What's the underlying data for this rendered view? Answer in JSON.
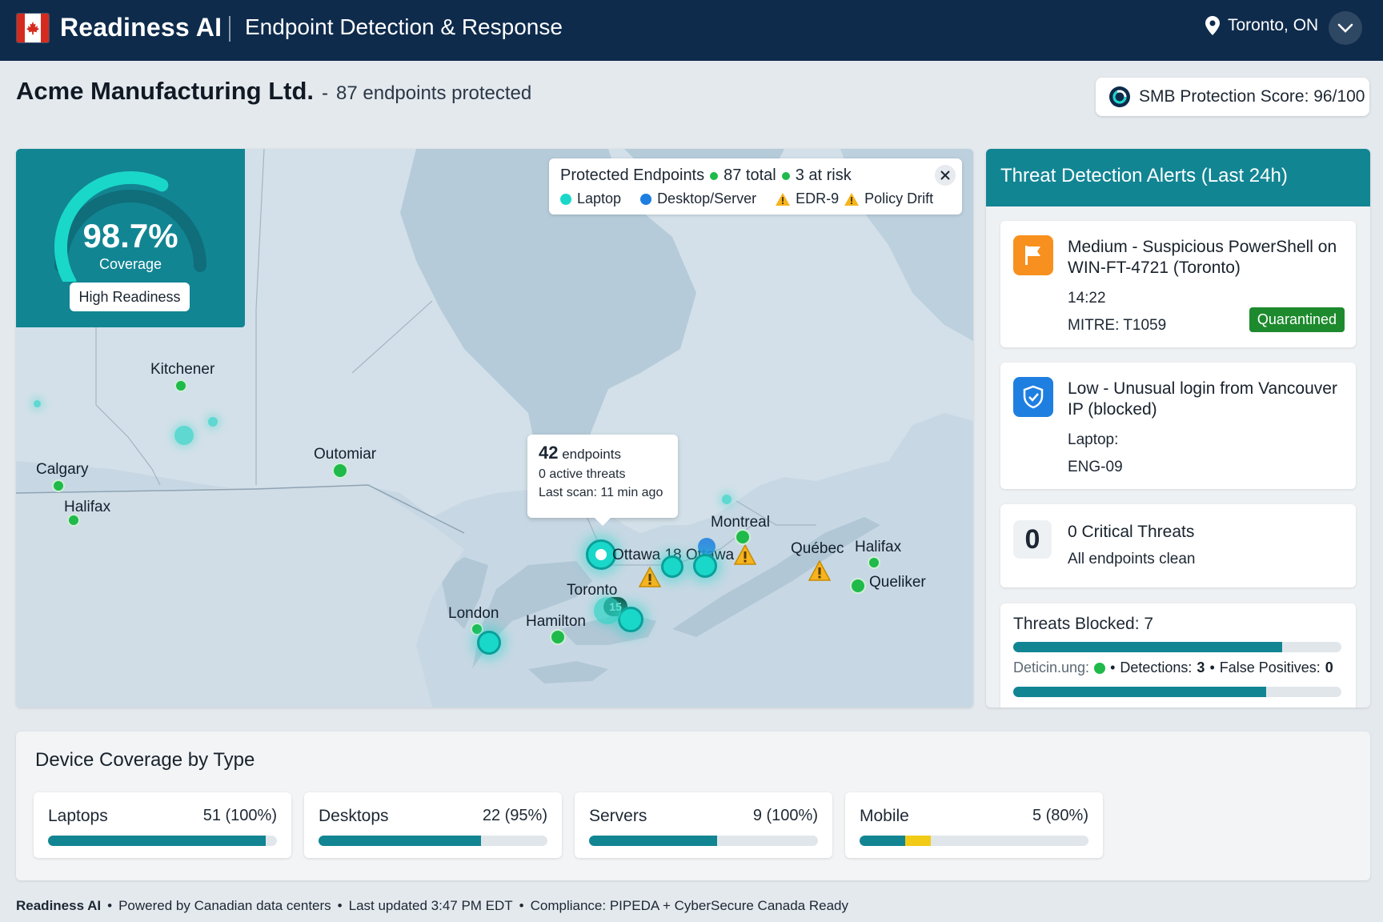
{
  "topbar": {
    "brand": "Readiness AI",
    "app_title": "Endpoint Detection & Response",
    "location": "Toronto, ON",
    "flag_icon": "canada-flag-icon"
  },
  "org": {
    "name": "Acme Manufacturing Ltd.",
    "separator": "-",
    "subtitle": "87 endpoints protected"
  },
  "score": {
    "label": "SMB Protection Score: 96/100"
  },
  "coverage": {
    "value": "98.7%",
    "label": "Coverage",
    "badge": "High Readiness",
    "fraction": 0.987
  },
  "legend": {
    "title": "Protected Endpoints",
    "total": "87 total",
    "at_risk": "3 at risk",
    "laptop": "Laptop",
    "desktop": "Desktop/Server",
    "edr": "EDR-9",
    "policy": "Policy Drift",
    "colors": {
      "green": "#1fba4a",
      "cyan": "#1ad8c9",
      "blue": "#1e7fe0",
      "warn": "#f5b41e"
    }
  },
  "tooltip": {
    "count": "42",
    "count_label": "endpoints",
    "threats": "0 active threats",
    "scan": "Last scan: 11 min ago"
  },
  "map": {
    "cities": {
      "kitchener": "Kitchener",
      "calgary": "Calgary",
      "halifax_w": "Halifax",
      "outomiar": "Outomiar",
      "london": "London",
      "hamilton": "Hamilton",
      "toronto": "Toronto",
      "ottawa": "Ottawa",
      "ottawa_count": "18",
      "ottawa_tail": "Ottawa",
      "montreal": "Montreal",
      "quebec": "Québec",
      "halifax_e": "Halifax",
      "queliker": "Queliker"
    },
    "cluster_toronto": "15"
  },
  "alerts": {
    "title": "Threat Detection Alerts (Last 24h)",
    "items": [
      {
        "title": "Medium - Suspicious PowerShell on WIN-FT-4721 (Toronto)",
        "time": "14:22",
        "mitre": "MITRE: T1059",
        "status": "Quarantined",
        "icon": "flag-icon"
      },
      {
        "title": "Low - Unusual login from Vancouver IP (blocked)",
        "line1": "Laptop:",
        "line2": "ENG-09",
        "icon": "shield-check-icon"
      },
      {
        "count": "0",
        "title": "0 Critical Threats",
        "subtitle": "All endpoints clean"
      }
    ],
    "blocked": {
      "title": "Threats Blocked: 7",
      "bar1_fraction": 0.82,
      "bar2_fraction": 0.77,
      "label_a": "Deticin.ung:",
      "detections_label": "Detections:",
      "detections": "3",
      "fp_label": "False Positives:",
      "fp": "0"
    }
  },
  "devices": {
    "title": "Device Coverage by Type",
    "items": [
      {
        "name": "Laptops",
        "value": "51 (100%)",
        "fill": 0.95,
        "warn": 0
      },
      {
        "name": "Desktops",
        "value": "22 (95%)",
        "fill": 0.71,
        "warn": 0
      },
      {
        "name": "Servers",
        "value": "9 (100%)",
        "fill": 0.56,
        "warn": 0
      },
      {
        "name": "Mobile",
        "value": "5 (80%)",
        "fill": 0.2,
        "warn": 0.11
      }
    ]
  },
  "footer": {
    "brand": "Readiness AI",
    "sep": "•",
    "powered": "Powered by Canadian data centers",
    "updated": "Last updated 3:47 PM EDT",
    "compliance": "Compliance: PIPEDA + CyberSecure Canada Ready"
  }
}
